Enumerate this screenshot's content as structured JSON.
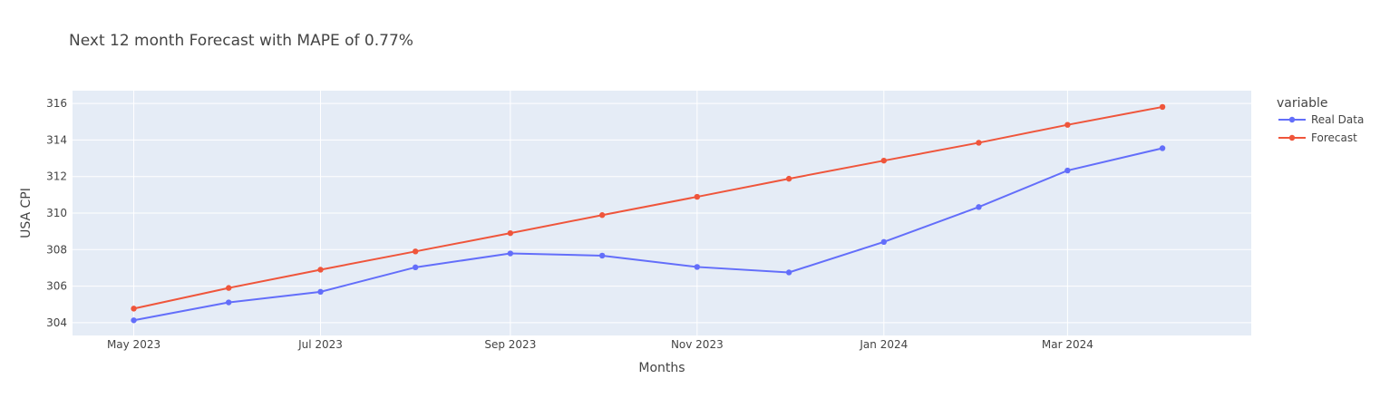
{
  "chart_data": {
    "type": "line",
    "title": "Next 12 month Forecast with MAPE of 0.77%",
    "xlabel": "Months",
    "ylabel": "USA CPI",
    "x": [
      "2023-05-01",
      "2023-06-01",
      "2023-07-01",
      "2023-08-01",
      "2023-09-01",
      "2023-10-01",
      "2023-11-01",
      "2023-12-01",
      "2024-01-01",
      "2024-02-01",
      "2024-03-01",
      "2024-04-01"
    ],
    "x_tick_labels": [
      "May 2023",
      "Jul 2023",
      "Sep 2023",
      "Nov 2023",
      "Jan 2024",
      "Mar 2024"
    ],
    "y_ticks": [
      304,
      306,
      308,
      310,
      312,
      314,
      316
    ],
    "ylim": [
      303.3,
      316.7
    ],
    "xlim": [
      "2023-04-11",
      "2024-04-30"
    ],
    "grid": true,
    "legend": {
      "title": "variable",
      "placement": "top-right"
    },
    "series": [
      {
        "name": "Real Data",
        "color": "#636efa",
        "values": [
          304.13,
          305.11,
          305.69,
          307.03,
          307.79,
          307.67,
          307.05,
          306.75,
          308.42,
          310.33,
          312.33,
          313.55
        ]
      },
      {
        "name": "Forecast",
        "color": "#ef553b",
        "values": [
          304.77,
          305.9,
          306.9,
          307.9,
          308.9,
          309.89,
          310.89,
          311.88,
          312.87,
          313.85,
          314.83,
          315.81
        ]
      }
    ]
  }
}
